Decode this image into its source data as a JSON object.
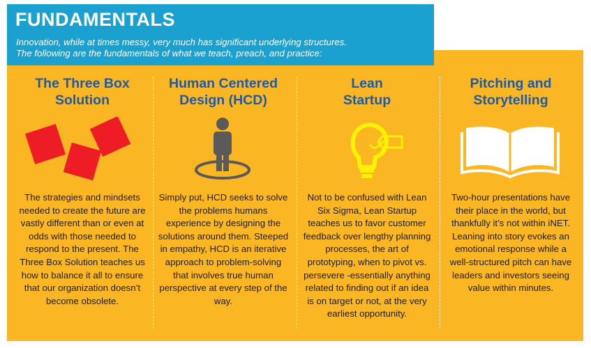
{
  "header": {
    "title": "FUNDAMENTALS",
    "subtitle_line1": "Innovation, while at times messy, very much has significant underlying structures.",
    "subtitle_line2": "The following are the fundamentals of what we teach, preach, and practice:"
  },
  "columns": [
    {
      "title_line1": "The Three Box",
      "title_line2": "Solution",
      "icon": "three-red-boxes-icon",
      "description": "The strategies and mindsets needed to create the future are vastly different than or even at odds with those needed to respond to the present. The Three Box Solution teaches us how to balance it all to ensure that our organization doesn’t become obsolete."
    },
    {
      "title_line1": "Human Centered",
      "title_line2": "Design (HCD)",
      "icon": "person-in-circle-icon",
      "description": "Simply put, HCD seeks to solve the problems humans experience by designing the solutions around them. Steeped in empathy, HCD is an iterative approach to problem-solving that involves true human perspective at every step of the way."
    },
    {
      "title_line1": "Lean",
      "title_line2": "Startup",
      "icon": "lightbulb-tag-icon",
      "description": "Not to be confused with Lean Six Sigma, Lean Startup teaches us to favor customer feedback over lengthy planning processes, the art of prototyping, when to pivot vs. persevere -essentially anything related to finding out if an idea is on target or not, at the very earliest opportunity."
    },
    {
      "title_line1": "Pitching and",
      "title_line2": "Storytelling",
      "icon": "open-book-icon",
      "description": "Two-hour presentations have their place in the world, but thankfully it’s not within iNET. Leaning into story evokes an emotional response while a well-structured pitch can have leaders and investors seeing value within minutes."
    }
  ],
  "colors": {
    "header_bg": "#1ba1cf",
    "panel_bg": "#fbb623",
    "title": "#1f5aa6",
    "box_red": "#ee1c25",
    "person_gray": "#5a5a5a",
    "bulb_yellow": "#fff200"
  }
}
